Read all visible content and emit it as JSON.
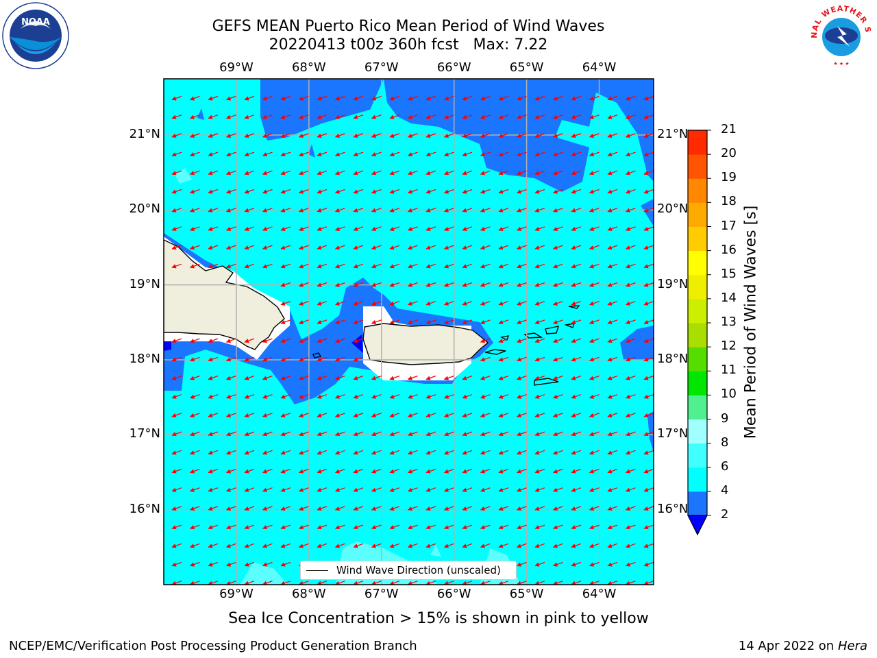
{
  "title": {
    "line1": "GEFS MEAN Puerto Rico Mean Period of Wind Waves",
    "line2": "20220413 t00z 360h fcst   Max: 7.22"
  },
  "logos": {
    "noaa_text": "NOAA",
    "noaa_ring": "NATIONAL OCEANIC AND ATMOSPHERIC ADMINISTRATION · U.S. DEPARTMENT OF COMMERCE",
    "nws_ring": "NATIONAL WEATHER SERVICE"
  },
  "map": {
    "lon_labels": [
      "69°W",
      "68°W",
      "67°W",
      "66°W",
      "65°W",
      "64°W"
    ],
    "lat_labels": [
      "21°N",
      "20°N",
      "19°N",
      "18°N",
      "17°N",
      "16°N"
    ],
    "lon_range": [
      -70.0,
      -63.25
    ],
    "lat_range": [
      15.0,
      21.75
    ],
    "grid": true,
    "vector_direction": "toward west-southwest",
    "vector_color": "#ff0000",
    "land_color": "#f0eedc",
    "ocean_dominant_color": "#00ffff",
    "legend_label": "Wind Wave Direction (unscaled)"
  },
  "colorbar": {
    "title": "Mean Period of Wind Waves [s]",
    "ticks": [
      "2",
      "4",
      "6",
      "8",
      "9",
      "10",
      "11",
      "12",
      "13",
      "14",
      "15",
      "16",
      "17",
      "18",
      "19",
      "20",
      "21"
    ],
    "colors": [
      "#1a75ff",
      "#00ffff",
      "#40ffff",
      "#a0ffff",
      "#50f090",
      "#00e600",
      "#55dd00",
      "#aadd00",
      "#ccee00",
      "#eeee00",
      "#ffff00",
      "#ffcc00",
      "#ffaa00",
      "#ff8800",
      "#ff5500",
      "#ff2a00"
    ],
    "extend_min_color": "#0000ff"
  },
  "subtitle": "Sea Ice Concentration > 15% is shown in pink to yellow",
  "footer": {
    "left": "NCEP/EMC/Verification Post Processing Product Generation Branch",
    "right_prefix": "14 Apr 2022 on ",
    "right_italic": "Hera"
  }
}
